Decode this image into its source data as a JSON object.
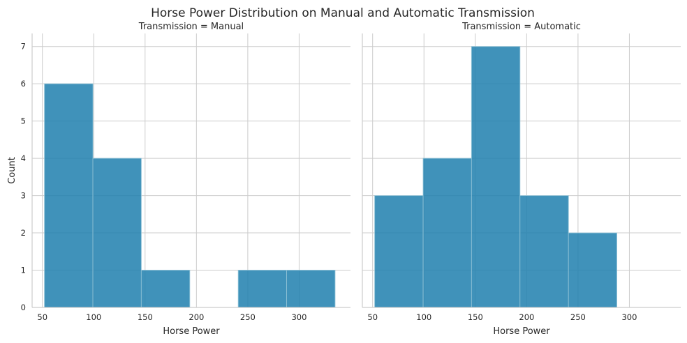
{
  "figure": {
    "suptitle": "Horse Power Distribution on Manual and Automatic Transmission"
  },
  "chart_data": [
    {
      "type": "bar",
      "title": "Transmission = Manual",
      "xlabel": "Horse Power",
      "ylabel": "Count",
      "bin_edges": [
        52,
        99.2,
        146.3,
        193.5,
        240.7,
        287.8,
        335
      ],
      "values": [
        6,
        4,
        1,
        0,
        1,
        1
      ],
      "xlim": [
        40,
        350
      ],
      "ylim": [
        0,
        7.35
      ],
      "xticks": [
        50,
        100,
        150,
        200,
        250,
        300
      ],
      "yticks": [
        0,
        1,
        2,
        3,
        4,
        5,
        6,
        7
      ],
      "color": "#1f7fae",
      "grid": true
    },
    {
      "type": "bar",
      "title": "Transmission = Automatic",
      "xlabel": "Horse Power",
      "ylabel": "",
      "bin_edges": [
        52,
        99.2,
        146.3,
        193.5,
        240.7,
        287.8
      ],
      "values": [
        3,
        4,
        7,
        3,
        2
      ],
      "xlim": [
        40,
        350
      ],
      "ylim": [
        0,
        7.35
      ],
      "xticks": [
        50,
        100,
        150,
        200,
        250,
        300
      ],
      "yticks": [
        0,
        1,
        2,
        3,
        4,
        5,
        6,
        7
      ],
      "color": "#1f7fae",
      "grid": true
    }
  ]
}
